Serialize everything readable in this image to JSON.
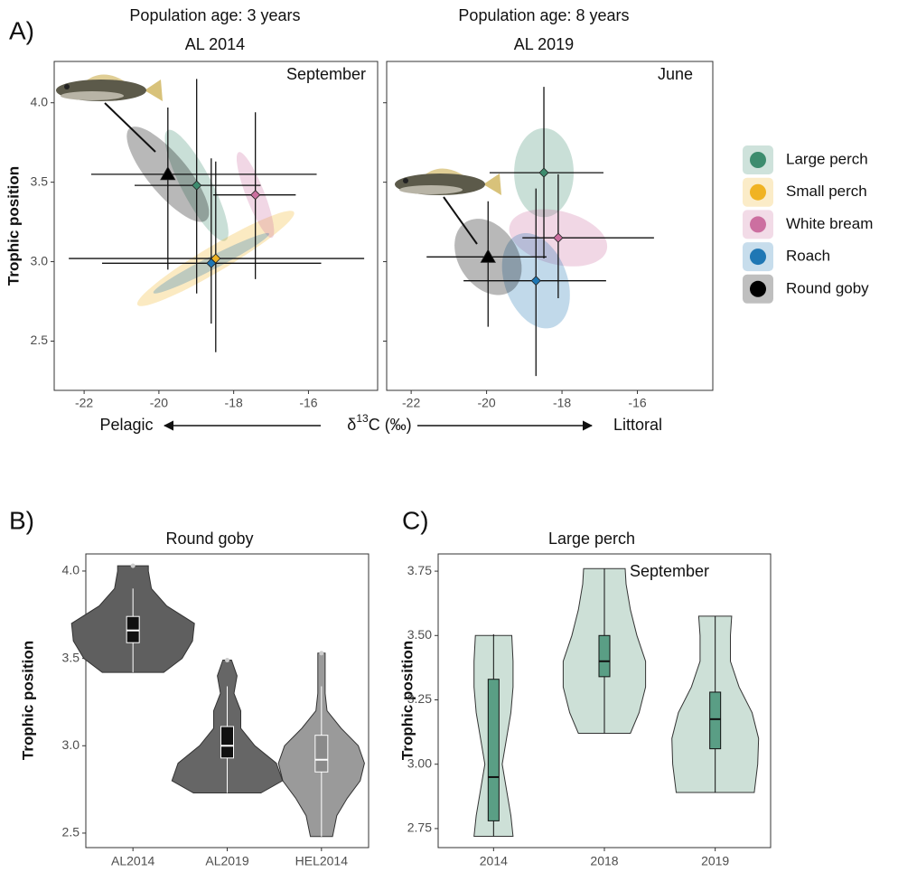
{
  "figure": {
    "panel_labels": [
      "A)",
      "B)",
      "C)"
    ]
  },
  "chart_data": [
    {
      "type": "scatter",
      "title": "Population age: 3 years",
      "subtitle": "AL 2014",
      "annotation": "September",
      "y_label": "Trophic position",
      "x_label": {
        "prefix": "δ",
        "sup": "13",
        "suffix": "C (‰)"
      },
      "direction_labels": [
        "Pelagic",
        "Littoral"
      ],
      "legend": "right",
      "xlim": [
        -22.8,
        -14.15
      ],
      "ylim": [
        2.19,
        4.26
      ],
      "xticks": [
        -22,
        -20,
        -18,
        -16
      ],
      "yticks": [
        2.5,
        {
          "value": 3,
          "label": "3.0"
        },
        3.5,
        {
          "value": 4,
          "label": "4.0"
        }
      ],
      "series": [
        {
          "name": "Large perch",
          "color": "#3d8c6e",
          "marker": "diamond",
          "x": -18.99,
          "y": 3.48,
          "x_range": [
            -20.65,
            -17.28
          ],
          "y_range": [
            2.8,
            4.15
          ],
          "ellipse": {
            "sx": 0.85,
            "sy": 0.35,
            "r": -0.85
          }
        },
        {
          "name": "Small perch",
          "color": "#f0b323",
          "marker": "diamond",
          "x": -18.48,
          "y": 3.02,
          "x_range": [
            -22.41,
            -14.51
          ],
          "y_range": [
            2.43,
            3.63
          ],
          "ellipse": {
            "sx": 2.1,
            "sy": 0.3,
            "r": 0.95
          }
        },
        {
          "name": "White bream",
          "color": "#cc6fa0",
          "marker": "diamond",
          "x": -17.42,
          "y": 3.42,
          "x_range": [
            -18.55,
            -16.34
          ],
          "y_range": [
            2.89,
            3.94
          ],
          "ellipse": {
            "sx": 0.5,
            "sy": 0.27,
            "r": -0.85
          }
        },
        {
          "name": "Roach",
          "color": "#1f77b4",
          "marker": "diamond",
          "x": -18.6,
          "y": 2.99,
          "x_range": [
            -21.52,
            -15.66
          ],
          "y_range": [
            2.61,
            3.65
          ],
          "ellipse": {
            "sx": 1.55,
            "sy": 0.19,
            "r": 0.97
          }
        },
        {
          "name": "Round goby",
          "color": "#000000",
          "marker": "triangle",
          "x": -19.76,
          "y": 3.55,
          "x_range": [
            -21.81,
            -15.78
          ],
          "y_range": [
            2.95,
            3.97
          ],
          "ellipse": {
            "sx": 1.1,
            "sy": 0.3,
            "r": -0.8
          }
        }
      ]
    },
    {
      "type": "scatter",
      "title": "Population age: 8 years",
      "subtitle": "AL 2019",
      "annotation": "June",
      "xlim": [
        -22.65,
        -14.0
      ],
      "ylim": [
        2.19,
        4.26
      ],
      "xticks": [
        -22,
        -20,
        -18,
        -16
      ],
      "yticks": [
        2.5,
        3,
        3.5,
        4
      ],
      "series": [
        {
          "name": "Large perch",
          "marker": "diamond",
          "x": -18.48,
          "y": 3.56,
          "x_range": [
            -19.92,
            -16.9
          ],
          "y_range": [
            3.02,
            4.1
          ],
          "ellipse": {
            "sx": 0.79,
            "sy": 0.28,
            "r": 0
          }
        },
        {
          "name": "White bream",
          "marker": "diamond",
          "x": -18.1,
          "y": 3.15,
          "x_range": [
            -19.05,
            -15.56
          ],
          "y_range": [
            2.77,
            3.55
          ],
          "ellipse": {
            "sx": 1.3,
            "sy": 0.18,
            "r": -0.3
          }
        },
        {
          "name": "Roach",
          "marker": "diamond",
          "x": -18.69,
          "y": 2.88,
          "x_range": [
            -20.61,
            -16.83
          ],
          "y_range": [
            2.28,
            3.46
          ],
          "ellipse": {
            "sx": 0.9,
            "sy": 0.3,
            "r": -0.3
          }
        },
        {
          "name": "Round goby",
          "marker": "triangle",
          "x": -19.96,
          "y": 3.03,
          "x_range": [
            -21.59,
            -18.41
          ],
          "y_range": [
            2.59,
            3.38
          ],
          "ellipse": {
            "sx": 0.89,
            "sy": 0.24,
            "r": -0.3
          }
        }
      ]
    },
    {
      "type": "violin",
      "title": "Round goby",
      "y_label": "Trophic position",
      "categories": [
        "AL2014",
        "AL2019",
        "HEL2014"
      ],
      "colors": [
        "#5f5f5f",
        "#666666",
        "#9a9a9a"
      ],
      "box_colors": [
        "#111111",
        "#111111",
        "#8a8a8a"
      ],
      "whisker_color": "#ffffff",
      "ylim": [
        2.417,
        4.098
      ],
      "yticks": [
        2.5,
        {
          "value": 3,
          "label": "3.0"
        },
        3.5,
        {
          "value": 4,
          "label": "4.0"
        }
      ],
      "violins": [
        {
          "y": [
            3.42,
            3.5,
            3.6,
            3.7,
            3.8,
            3.9,
            4.0,
            4.03
          ],
          "density": [
            0.5,
            0.8,
            0.97,
            1.0,
            0.55,
            0.3,
            0.25,
            0.25
          ]
        },
        {
          "y": [
            2.73,
            2.8,
            2.9,
            3.0,
            3.1,
            3.2,
            3.3,
            3.4,
            3.49
          ],
          "density": [
            0.55,
            0.9,
            0.8,
            0.45,
            0.22,
            0.22,
            0.11,
            0.16,
            0.07
          ]
        },
        {
          "y": [
            2.48,
            2.6,
            2.7,
            2.8,
            2.9,
            3.0,
            3.1,
            3.2,
            3.3,
            3.4,
            3.53
          ],
          "density": [
            0.18,
            0.25,
            0.42,
            0.63,
            0.7,
            0.6,
            0.32,
            0.09,
            0.06,
            0.06,
            0.06
          ]
        }
      ],
      "boxes": [
        {
          "whisker_low": 3.42,
          "q1": 3.59,
          "median": 3.66,
          "q3": 3.74,
          "whisker_high": 3.9
        },
        {
          "whisker_low": 2.73,
          "q1": 2.93,
          "median": 3.0,
          "q3": 3.11,
          "whisker_high": 3.34
        },
        {
          "whisker_low": 2.48,
          "q1": 2.85,
          "median": 2.92,
          "q3": 3.06,
          "whisker_high": 3.34
        }
      ],
      "outliers": [
        [
          4.03
        ],
        [
          3.49
        ],
        [
          3.53
        ]
      ]
    },
    {
      "type": "violin",
      "title": "Large perch",
      "annotation": "September",
      "y_label": "Trophic position",
      "categories": [
        "2014",
        "2018",
        "2019"
      ],
      "colors": [
        "#cde0d7",
        "#cde0d7",
        "#cde0d7"
      ],
      "box_colors": [
        "#5a9e85",
        "#5a9e85",
        "#5a9e85"
      ],
      "whisker_color": "#111111",
      "ylim": [
        2.676,
        3.817
      ],
      "yticks": [
        2.75,
        {
          "value": 3,
          "label": "3.00"
        },
        3.25,
        {
          "value": 3.5,
          "label": "3.50"
        },
        3.75
      ],
      "violins": [
        {
          "y": [
            2.72,
            2.8,
            2.9,
            3.0,
            3.1,
            3.2,
            3.3,
            3.4,
            3.5
          ],
          "density": [
            0.45,
            0.4,
            0.3,
            0.2,
            0.3,
            0.4,
            0.45,
            0.45,
            0.42
          ]
        },
        {
          "y": [
            3.12,
            3.2,
            3.3,
            3.4,
            3.5,
            3.6,
            3.7,
            3.76
          ],
          "density": [
            0.6,
            0.8,
            0.95,
            0.95,
            0.75,
            0.6,
            0.5,
            0.48
          ]
        },
        {
          "y": [
            2.89,
            3.0,
            3.1,
            3.2,
            3.3,
            3.4,
            3.5,
            3.575
          ],
          "density": [
            0.9,
            0.98,
            1.0,
            0.85,
            0.55,
            0.35,
            0.35,
            0.38
          ]
        }
      ],
      "boxes": [
        {
          "whisker_low": 2.72,
          "q1": 2.78,
          "median": 2.95,
          "q3": 3.33,
          "whisker_high": 3.505
        },
        {
          "whisker_low": 3.12,
          "q1": 3.34,
          "median": 3.4,
          "q3": 3.5,
          "whisker_high": 3.76
        },
        {
          "whisker_low": 2.89,
          "q1": 3.06,
          "median": 3.175,
          "q3": 3.28,
          "whisker_high": 3.575
        }
      ]
    }
  ]
}
